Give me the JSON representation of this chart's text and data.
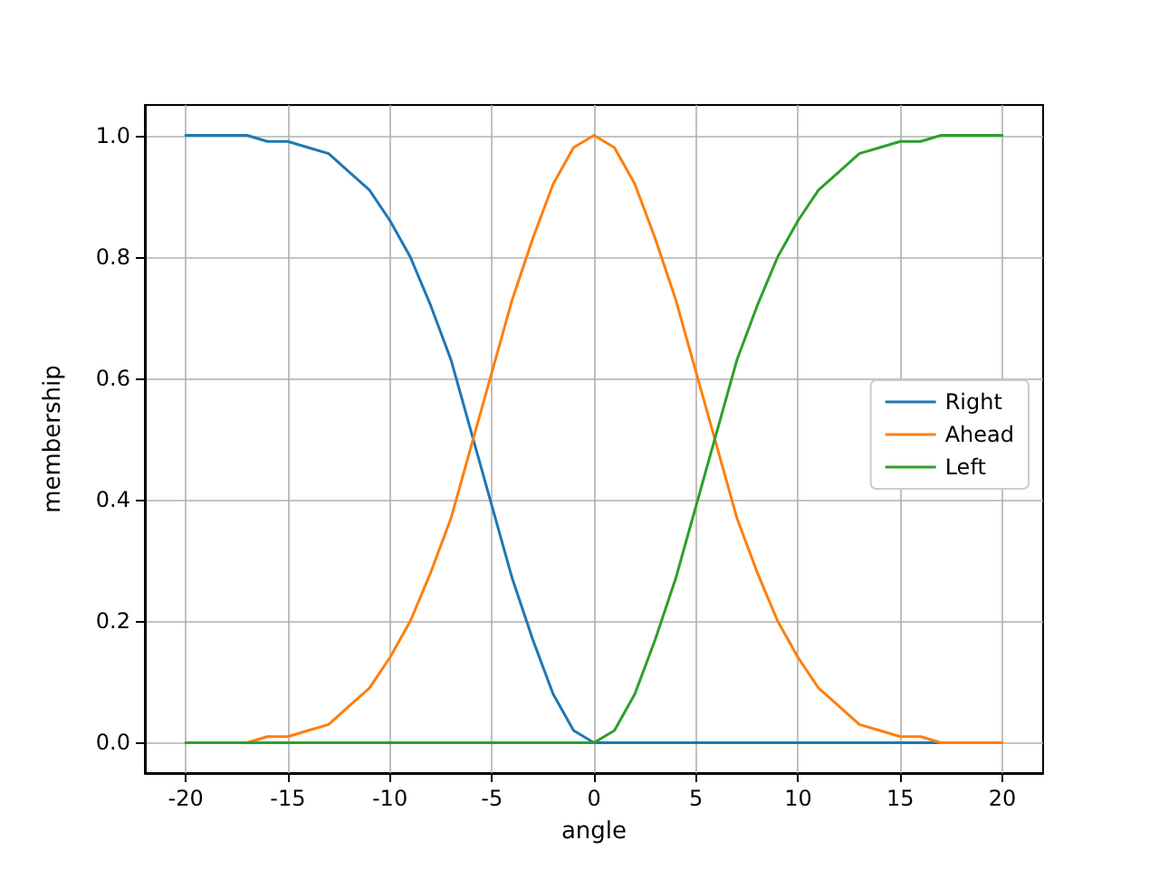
{
  "chart_data": {
    "type": "line",
    "xlabel": "angle",
    "ylabel": "membership",
    "x": [
      -20,
      -19,
      -18,
      -17,
      -16,
      -15,
      -14,
      -13,
      -12,
      -11,
      -10,
      -9,
      -8,
      -7,
      -6,
      -5,
      -4,
      -3,
      -2,
      -1,
      0,
      1,
      2,
      3,
      4,
      5,
      6,
      7,
      8,
      9,
      10,
      11,
      12,
      13,
      14,
      15,
      16,
      17,
      18,
      19,
      20
    ],
    "series": [
      {
        "name": "Right",
        "color": "#1f77b4",
        "values": [
          1,
          1,
          1,
          1,
          0.99,
          0.99,
          0.98,
          0.97,
          0.94,
          0.91,
          0.86,
          0.8,
          0.72,
          0.63,
          0.51,
          0.39,
          0.27,
          0.17,
          0.08,
          0.02,
          0,
          0,
          0,
          0,
          0,
          0,
          0,
          0,
          0,
          0,
          0,
          0,
          0,
          0,
          0,
          0,
          0,
          0,
          0,
          null,
          null
        ]
      },
      {
        "name": "Ahead",
        "color": "#ff7f0e",
        "values": [
          null,
          null,
          0,
          0,
          0.01,
          0.01,
          0.02,
          0.03,
          0.06,
          0.09,
          0.14,
          0.2,
          0.28,
          0.37,
          0.49,
          0.61,
          0.73,
          0.83,
          0.92,
          0.98,
          1,
          0.98,
          0.92,
          0.83,
          0.73,
          0.61,
          0.49,
          0.37,
          0.28,
          0.2,
          0.14,
          0.09,
          0.06,
          0.03,
          0.02,
          0.01,
          0.01,
          0,
          0,
          0,
          0
        ]
      },
      {
        "name": "Left",
        "color": "#2ca02c",
        "values": [
          0,
          0,
          0,
          0,
          0,
          0,
          0,
          0,
          0,
          0,
          0,
          0,
          0,
          0,
          0,
          0,
          0,
          0,
          0,
          0,
          0,
          0.02,
          0.08,
          0.17,
          0.27,
          0.39,
          0.51,
          0.63,
          0.72,
          0.8,
          0.86,
          0.91,
          0.94,
          0.97,
          0.98,
          0.99,
          0.99,
          1,
          1,
          1,
          1
        ]
      }
    ],
    "xlim": [
      -22,
      22
    ],
    "xticks": [
      -20,
      -15,
      -10,
      -5,
      0,
      5,
      10,
      15,
      20
    ],
    "ylim": [
      -0.05,
      1.05
    ],
    "yticks": [
      {
        "value": 0,
        "label": "0.0"
      },
      {
        "value": 0.2,
        "label": "0.2"
      },
      {
        "value": 0.4,
        "label": "0.4"
      },
      {
        "value": 0.6,
        "label": "0.6"
      },
      {
        "value": 0.8,
        "label": "0.8"
      },
      {
        "value": 1,
        "label": "1.0"
      }
    ],
    "grid": true,
    "legend": "center right",
    "marker": "none",
    "line_style": "solid"
  }
}
